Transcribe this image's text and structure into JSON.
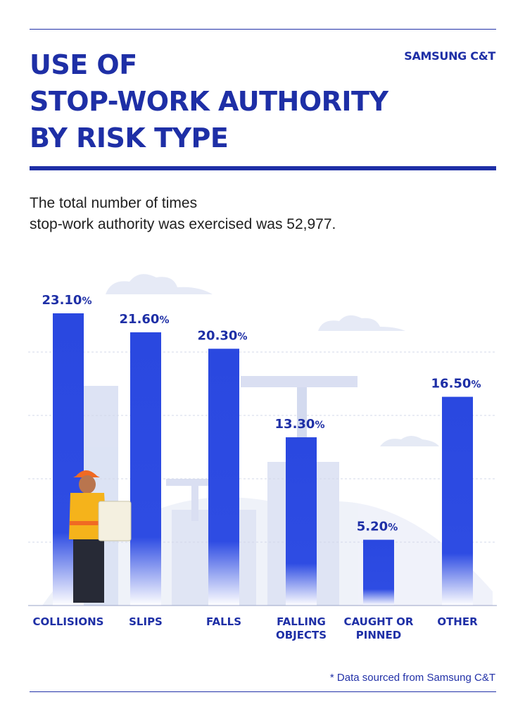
{
  "header": {
    "title_lines": [
      "USE OF",
      "STOP-WORK AUTHORITY",
      "BY RISK TYPE"
    ],
    "brand": "SAMSUNG C&T"
  },
  "subtitle_lines": [
    "The total number of times",
    "stop-work authority was exercised was 52,977."
  ],
  "footer": {
    "source": "* Data sourced from Samsung C&T"
  },
  "colors": {
    "accent": "#1e2fa6",
    "bar": "#2a48e0",
    "bar_fade": "#ffffff"
  },
  "chart_data": {
    "type": "bar",
    "categories": [
      "COLLISIONS",
      "SLIPS",
      "FALLS",
      "FALLING OBJECTS",
      "CAUGHT OR PINNED",
      "OTHER"
    ],
    "category_lines": [
      [
        "COLLISIONS"
      ],
      [
        "SLIPS"
      ],
      [
        "FALLS"
      ],
      [
        "FALLING",
        "OBJECTS"
      ],
      [
        "CAUGHT OR",
        "PINNED"
      ],
      [
        "OTHER"
      ]
    ],
    "values": [
      23.1,
      21.6,
      20.3,
      13.3,
      5.2,
      16.5
    ],
    "value_labels": [
      "23.10",
      "21.60",
      "20.30",
      "13.30",
      "5.20",
      "16.50"
    ],
    "value_unit": "%",
    "ylim": [
      0,
      23.1
    ],
    "grid": true
  }
}
